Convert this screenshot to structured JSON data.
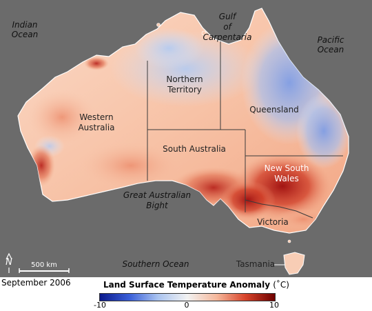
{
  "labels": {
    "indian_ocean_line1": "Indian",
    "indian_ocean_line2": "Ocean",
    "gulf_line1": "Gulf",
    "gulf_line2": "of",
    "gulf_line3": "Carpentaria",
    "pacific_line1": "Pacific",
    "pacific_line2": "Ocean",
    "northern_territory_line1": "Northern",
    "northern_territory_line2": "Territory",
    "queensland": "Queensland",
    "western_australia_line1": "Western",
    "western_australia_line2": "Australia",
    "south_australia": "South Australia",
    "new_south_wales_line1": "New South",
    "new_south_wales_line2": "Wales",
    "great_australian_bight_line1": "Great Australian",
    "great_australian_bight_line2": "Bight",
    "victoria": "Victoria",
    "southern_ocean": "Southern Ocean",
    "tasmania": "Tasmania",
    "scale_bar": "500 km",
    "north_arrow": "N"
  },
  "date": "September 2006",
  "legend": {
    "title": "Land Surface Temperature Anomaly",
    "unit": "(˚C)",
    "min_label": "-10",
    "mid_label": "0",
    "max_label": "10",
    "min_value": -10,
    "max_value": 10,
    "colors": [
      "#0b1a8c",
      "#3a5fd8",
      "#a9c3f0",
      "#f2f2f2",
      "#f5b79a",
      "#d8452c",
      "#6e0000"
    ]
  },
  "colors": {
    "ocean": "#6b6b6b",
    "coastline": "#ffffff",
    "border": "#3a3a3a"
  }
}
